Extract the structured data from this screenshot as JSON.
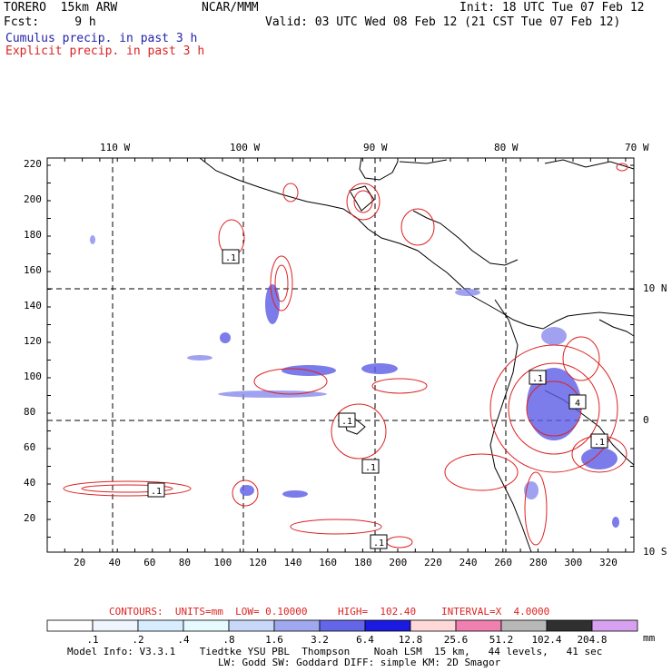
{
  "header": {
    "model": "TORERO  15km ARW",
    "center": "NCAR/MMM",
    "init": "Init: 18 UTC Tue 07 Feb 12",
    "fcst": "Fcst:     9 h",
    "valid": "Valid: 03 UTC Wed 08 Feb 12 (21 CST Tue 07 Feb 12)",
    "cumulus": "Cumulus precip. in past 3 h",
    "explicit": "Explicit precip. in past 3 h"
  },
  "colors": {
    "cumulus_text": "#2222aa",
    "explicit_text": "#dd2222",
    "contour": "#dd2222",
    "coast": "#000000"
  },
  "axes": {
    "top_lon": [
      "110 W",
      "100 W",
      "90 W",
      "80 W",
      "70 W"
    ],
    "right_lat": [
      "10 N",
      "0",
      "10 S"
    ],
    "left_y": [
      "220",
      "200",
      "180",
      "160",
      "140",
      "120",
      "100",
      "80",
      "60",
      "40",
      "20"
    ],
    "bottom_x": [
      "20",
      "40",
      "60",
      "80",
      "100",
      "120",
      "140",
      "160",
      "180",
      "200",
      "220",
      "240",
      "260",
      "280",
      "300",
      "320"
    ]
  },
  "contour_info": {
    "contours": "CONTOURS:  UNITS=mm  LOW= 0.10000",
    "high": "HIGH=  102.40",
    "interval": "INTERVAL=X  4.0000"
  },
  "colorbar": {
    "labels": [
      ".1",
      ".2",
      ".4",
      ".8",
      "1.6",
      "3.2",
      "6.4",
      "12.8",
      "25.6",
      "51.2",
      "102.4",
      "204.8"
    ],
    "unit": "mm",
    "colors": [
      "#ffffff",
      "#eef5ff",
      "#d8ecff",
      "#e6faff",
      "#c8d8f8",
      "#a0a8f0",
      "#6466e8",
      "#1a1ae0",
      "#ffd8d8",
      "#f080b0",
      "#b8b8b8",
      "#303030",
      "#d8a0f0"
    ]
  },
  "contour_labels": [
    ".1",
    ".1",
    ".1",
    ".1",
    ".1",
    ".1",
    "4",
    ".1"
  ],
  "footer": {
    "line1": "Model Info: V3.3.1    Tiedtke YSU PBL  Thompson    Noah LSM  15 km,   44 levels,   41 sec",
    "line2": "LW: Godd SW: Goddard DIFF: simple KM: 2D Smagor"
  }
}
